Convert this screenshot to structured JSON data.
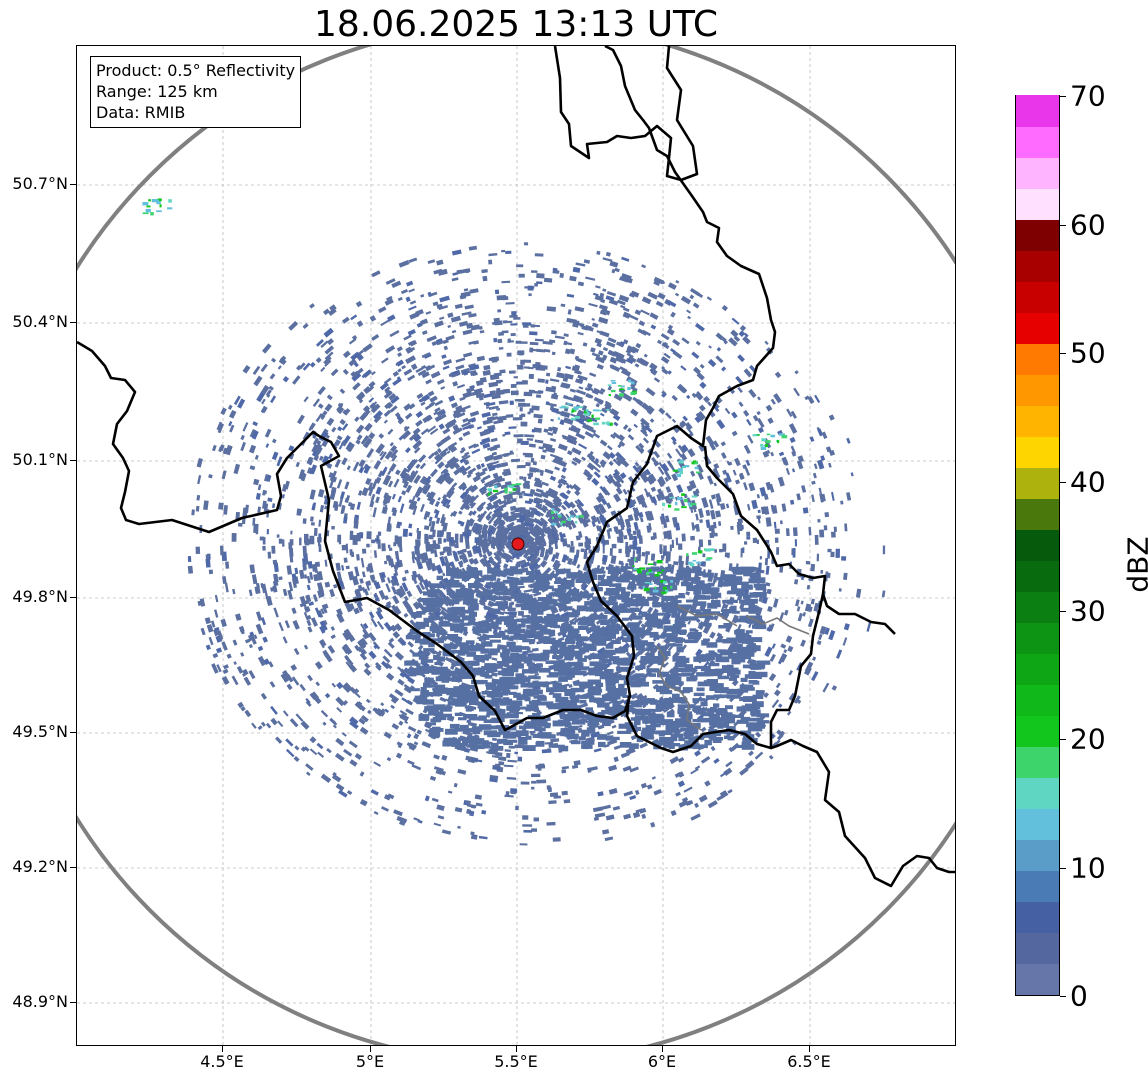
{
  "title": "18.06.2025 13:13 UTC",
  "info": {
    "product": "Product: 0.5° Reflectivity",
    "range": "Range: 125 km",
    "data": "Data: RMIB"
  },
  "lat_labels": [
    "50.7°N",
    "50.4°N",
    "50.1°N",
    "49.8°N",
    "49.5°N",
    "49.2°N",
    "48.9°N"
  ],
  "lon_labels": [
    "4.5°E",
    "5°E",
    "5.5°E",
    "6°E",
    "6.5°E"
  ],
  "colorbar": {
    "unit": "dBZ",
    "tick_labels": [
      "70",
      "60",
      "50",
      "40",
      "30",
      "20",
      "10",
      "0"
    ],
    "colors": [
      "#6676a8",
      "#54679e",
      "#4660a4",
      "#4b7bb4",
      "#5a9dc8",
      "#63c0dc",
      "#5ed6c2",
      "#3dd46c",
      "#12c61e",
      "#10b81a",
      "#0fa616",
      "#0e9414",
      "#0b7f12",
      "#086c0e",
      "#055a0c",
      "#4b780c",
      "#aeb20c",
      "#ffd500",
      "#ffb400",
      "#ff9800",
      "#ff7a00",
      "#e60000",
      "#c80000",
      "#a80000",
      "#7e0000",
      "#ffe0ff",
      "#ffb4ff",
      "#ff6aff",
      "#ea36ea"
    ]
  },
  "map": {
    "radar_site": "red-dot",
    "range_ring_color": "#808080",
    "echo_color": "#5b70a0"
  }
}
